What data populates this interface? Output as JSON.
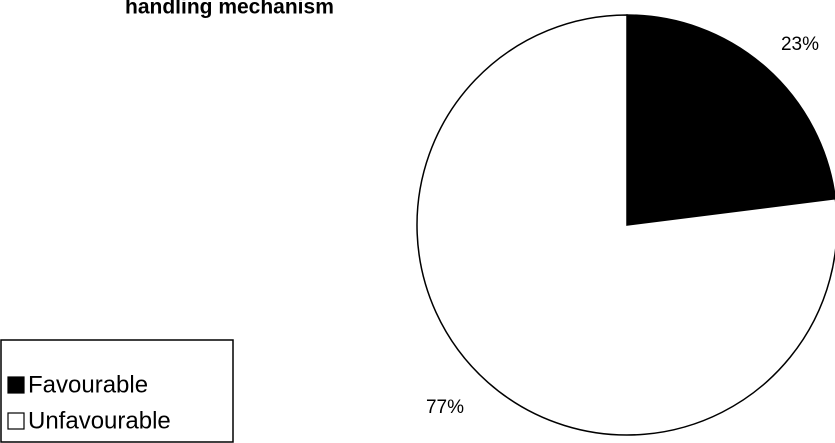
{
  "chart_data": {
    "type": "pie",
    "title": "handling mechanism",
    "categories": [
      "Favourable",
      "Unfavourable"
    ],
    "values": [
      23,
      77
    ],
    "value_labels": [
      "23%",
      "77%"
    ],
    "colors": [
      "#000000",
      "#ffffff"
    ],
    "legend": "bottom-left"
  }
}
